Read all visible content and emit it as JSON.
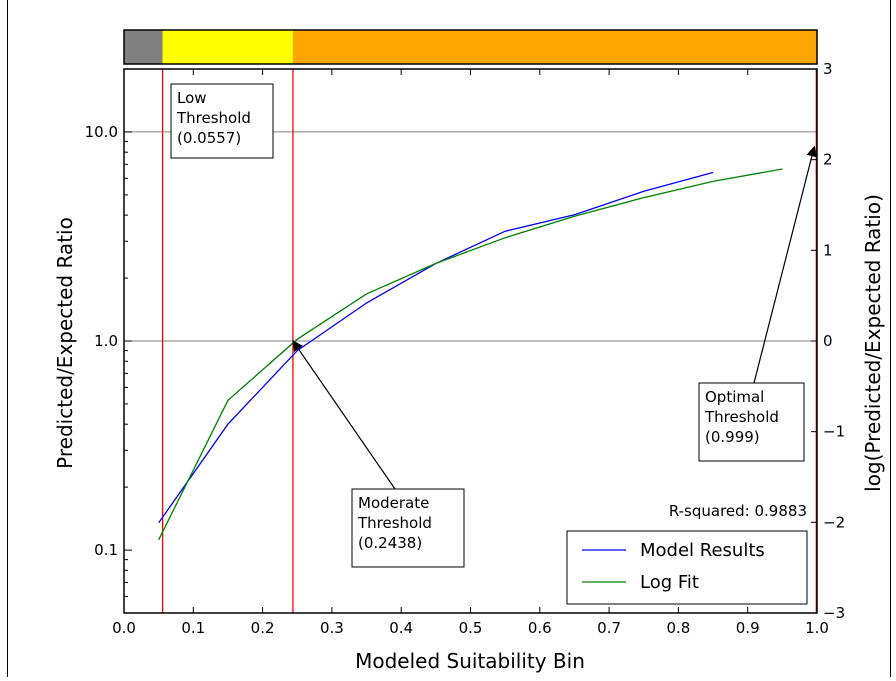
{
  "chart_data": {
    "type": "line",
    "title": "",
    "xlabel": "Modeled Suitability Bin",
    "ylabel": "Predicted/Expected Ratio",
    "y2label": "log(Predicted/Expected Ratio)",
    "xlim": [
      0.0,
      1.0
    ],
    "ylim": [
      0.05,
      20
    ],
    "yscale": "log",
    "y2lim": [
      -3,
      3
    ],
    "grid": "horizontal at 1.0 and 10.0",
    "x_ticks": [
      "0.0",
      "0.1",
      "0.2",
      "0.3",
      "0.4",
      "0.5",
      "0.6",
      "0.7",
      "0.8",
      "0.9",
      "1.0"
    ],
    "y_ticks": [
      {
        "value": 0.1,
        "label": "0.1"
      },
      {
        "value": 1.0,
        "label": "1.0"
      },
      {
        "value": 10.0,
        "label": "10.0"
      }
    ],
    "y2_ticks": [
      {
        "value": -3,
        "label": "−3"
      },
      {
        "value": -2,
        "label": "−2"
      },
      {
        "value": -1,
        "label": "−1"
      },
      {
        "value": 0,
        "label": "0"
      },
      {
        "value": 1,
        "label": "1"
      },
      {
        "value": 2,
        "label": "2"
      },
      {
        "value": 3,
        "label": "3"
      }
    ],
    "series": [
      {
        "name": "Model Results",
        "color": "#0000ff",
        "x": [
          0.05,
          0.15,
          0.25,
          0.35,
          0.45,
          0.55,
          0.65,
          0.75,
          0.85
        ],
        "y": [
          0.135,
          0.4,
          0.9,
          1.52,
          2.35,
          3.35,
          4.02,
          5.2,
          6.4
        ]
      },
      {
        "name": "Log Fit",
        "color": "#008000",
        "x": [
          0.05,
          0.15,
          0.25,
          0.35,
          0.45,
          0.55,
          0.65,
          0.75,
          0.85,
          0.95
        ],
        "y": [
          0.112,
          0.52,
          1.02,
          1.68,
          2.35,
          3.12,
          3.95,
          4.85,
          5.8,
          6.65
        ]
      }
    ],
    "thresholds": [
      {
        "name": "Low",
        "value": 0.0557,
        "lines": [
          "Low",
          "Threshold",
          "(0.0557)"
        ],
        "color": "#ff0000"
      },
      {
        "name": "Moderate",
        "value": 0.2438,
        "lines": [
          "Moderate",
          "Threshold",
          "(0.2438)"
        ],
        "color": "#ff0000"
      },
      {
        "name": "Optimal",
        "value": 0.999,
        "lines": [
          "Optimal",
          "Threshold",
          "(0.999)"
        ],
        "color": "#ff0000"
      }
    ],
    "annotation_r2": "R-squared: 0.9883",
    "legend_position": "lower-right",
    "color_bar": [
      {
        "from": 0.0,
        "to": 0.0557,
        "color": "#808080"
      },
      {
        "from": 0.0557,
        "to": 0.2438,
        "color": "#ffff00"
      },
      {
        "from": 0.2438,
        "to": 1.0,
        "color": "#ffa500"
      }
    ]
  }
}
